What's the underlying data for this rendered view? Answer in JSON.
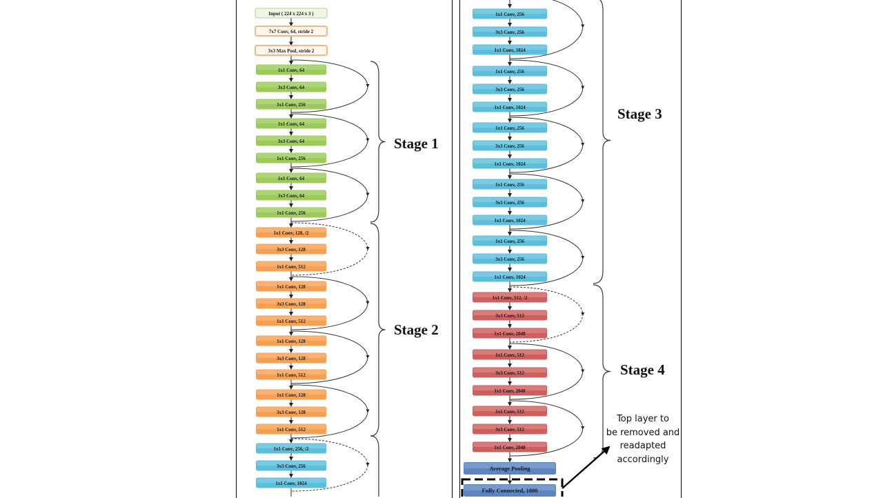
{
  "colors": {
    "input": "#eef6e4",
    "stem": "#fff7ee",
    "stage1": "#9ccb5a",
    "stage2": "#f7a052",
    "stage3": "#5bbedb",
    "stage4": "#cf5e5e",
    "pool_fc": "#5b84c0"
  },
  "left_column": [
    {
      "label": "Input ( 224 x 224 x 3 )",
      "style": "input"
    },
    {
      "label": "7x7 Conv, 64, stride 2",
      "style": "stem"
    },
    {
      "label": "3x3 Max Pool, stride 2",
      "style": "stem"
    },
    {
      "label": "1x1 Conv, 64",
      "style": "stage1"
    },
    {
      "label": "3x3 Conv, 64",
      "style": "stage1"
    },
    {
      "label": "1x1 Conv, 256",
      "style": "stage1"
    },
    {
      "label": "1x1 Conv, 64",
      "style": "stage1"
    },
    {
      "label": "3x3 Conv, 64",
      "style": "stage1"
    },
    {
      "label": "1x1 Conv, 256",
      "style": "stage1"
    },
    {
      "label": "1x1 Conv, 64",
      "style": "stage1"
    },
    {
      "label": "3x3 Conv, 64",
      "style": "stage1"
    },
    {
      "label": "1x1 Conv, 256",
      "style": "stage1"
    },
    {
      "label": "1x1 Conv, 128, /2",
      "style": "stage2"
    },
    {
      "label": "3x3 Conv, 128",
      "style": "stage2"
    },
    {
      "label": "1x1 Conv, 512",
      "style": "stage2"
    },
    {
      "label": "1x1 Conv, 128",
      "style": "stage2"
    },
    {
      "label": "3x3 Conv, 128",
      "style": "stage2"
    },
    {
      "label": "1x1 Conv, 512",
      "style": "stage2"
    },
    {
      "label": "1x1 Conv, 128",
      "style": "stage2"
    },
    {
      "label": "3x3 Conv, 128",
      "style": "stage2"
    },
    {
      "label": "1x1 Conv, 512",
      "style": "stage2"
    },
    {
      "label": "1x1 Conv, 128",
      "style": "stage2"
    },
    {
      "label": "3x3 Conv, 128",
      "style": "stage2"
    },
    {
      "label": "1x1 Conv, 512",
      "style": "stage2"
    },
    {
      "label": "1x1 Conv, 256, /2",
      "style": "stage3"
    },
    {
      "label": "3x3 Conv, 256",
      "style": "stage3"
    },
    {
      "label": "1x1 Conv, 1024",
      "style": "stage3"
    }
  ],
  "right_column": [
    {
      "label": "1x1 Conv, 256",
      "style": "stage3"
    },
    {
      "label": "3x3 Conv, 256",
      "style": "stage3"
    },
    {
      "label": "1x1 Conv, 1024",
      "style": "stage3"
    },
    {
      "label": "1x1 Conv, 256",
      "style": "stage3"
    },
    {
      "label": "3x3 Conv, 256",
      "style": "stage3"
    },
    {
      "label": "1x1 Conv, 1024",
      "style": "stage3"
    },
    {
      "label": "1x1 Conv, 256",
      "style": "stage3"
    },
    {
      "label": "3x3 Conv, 256",
      "style": "stage3"
    },
    {
      "label": "1x1 Conv, 1024",
      "style": "stage3"
    },
    {
      "label": "1x1 Conv, 256",
      "style": "stage3"
    },
    {
      "label": "3x3 Conv, 256",
      "style": "stage3"
    },
    {
      "label": "1x1 Conv, 1024",
      "style": "stage3"
    },
    {
      "label": "1x1 Conv, 256",
      "style": "stage3"
    },
    {
      "label": "3x3 Conv, 256",
      "style": "stage3"
    },
    {
      "label": "1x1 Conv, 1024",
      "style": "stage3"
    },
    {
      "label": "1x1 Conv, 512, /2",
      "style": "stage4"
    },
    {
      "label": "3x3 Conv, 512",
      "style": "stage4"
    },
    {
      "label": "1x1 Conv, 2048",
      "style": "stage4"
    },
    {
      "label": "1x1 Conv, 512",
      "style": "stage4"
    },
    {
      "label": "3x3 Conv, 512",
      "style": "stage4"
    },
    {
      "label": "1x1 Conv, 2048",
      "style": "stage4"
    },
    {
      "label": "1x1 Conv, 512",
      "style": "stage4"
    },
    {
      "label": "3x3 Conv, 512",
      "style": "stage4"
    },
    {
      "label": "1x1 Conv, 2048",
      "style": "stage4"
    },
    {
      "label": "Average Pooling",
      "style": "pool_fc"
    },
    {
      "label": "Fully Connected, 1000",
      "style": "pool_fc"
    }
  ],
  "stages": {
    "stage1": "Stage 1",
    "stage2": "Stage 2",
    "stage3": "Stage 3",
    "stage4": "Stage 4"
  },
  "annotation": {
    "line1": "Top layer to",
    "line2": "be removed  and",
    "line3": "readapted",
    "line4": "accordingly"
  }
}
